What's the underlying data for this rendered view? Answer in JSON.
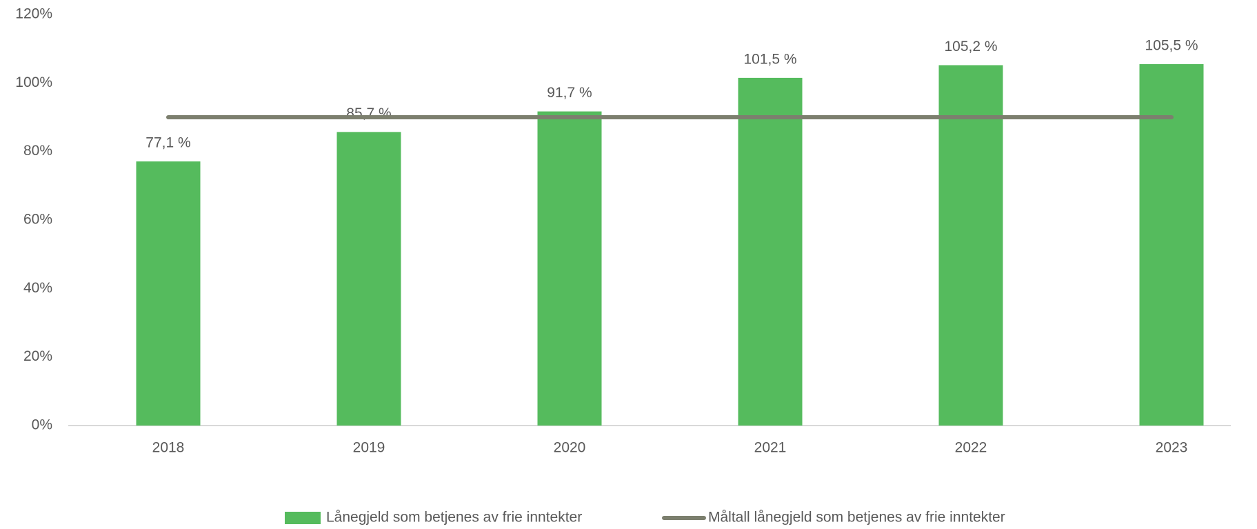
{
  "chart_data": {
    "type": "bar",
    "categories": [
      "2018",
      "2019",
      "2020",
      "2021",
      "2022",
      "2023"
    ],
    "series": [
      {
        "name": "Lånegjeld som betjenes av frie inntekter",
        "type": "bar",
        "color": "#55bb5d",
        "values": [
          77.1,
          85.7,
          91.7,
          101.5,
          105.2,
          105.5
        ],
        "value_labels": [
          "77,1 %",
          "85,7 %",
          "91,7 %",
          "101,5 %",
          "105,2 %",
          "105,5 %"
        ]
      },
      {
        "name": "Måltall lånegjeld som betjenes av frie inntekter",
        "type": "line",
        "color": "#7c7f6e",
        "values": [
          90,
          90,
          90,
          90,
          90,
          90
        ]
      }
    ],
    "ylim": [
      0,
      120
    ],
    "yticks": [
      {
        "value": 0,
        "label": "0%"
      },
      {
        "value": 20,
        "label": "20%"
      },
      {
        "value": 40,
        "label": "40%"
      },
      {
        "value": 60,
        "label": "60%"
      },
      {
        "value": 80,
        "label": "80%"
      },
      {
        "value": 100,
        "label": "100%"
      },
      {
        "value": 120,
        "label": "120%"
      }
    ],
    "grid": false,
    "legend": "bottom"
  }
}
